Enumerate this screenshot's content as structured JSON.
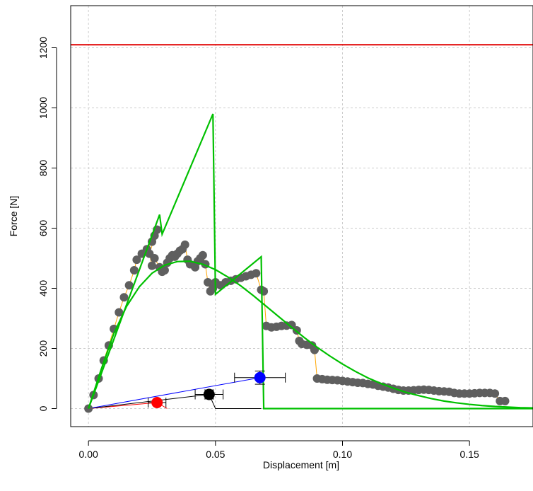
{
  "chart_data": {
    "type": "scatter",
    "title": "",
    "xlabel": "Displacement [m]",
    "ylabel": "Force [N]",
    "xlim": [
      -0.007,
      0.175
    ],
    "ylim": [
      -60,
      1340
    ],
    "xticks": [
      0.0,
      0.05,
      0.1,
      0.15
    ],
    "xtick_labels": [
      "0.00",
      "0.05",
      "0.10",
      "0.15"
    ],
    "yticks": [
      0,
      200,
      400,
      600,
      800,
      1000,
      1200
    ],
    "ytick_labels": [
      "0",
      "200",
      "400",
      "600",
      "800",
      "1000",
      "1200"
    ],
    "grid": true,
    "legend": "none",
    "colors": {
      "measured": "#5f5f5f",
      "model": "#00c000",
      "limit": "#e00000",
      "connector": "#ffa500",
      "red_point": "#ff0000",
      "black_point": "#000000",
      "blue_point": "#0000ff",
      "grid": "#cccccc"
    },
    "hline": 1210,
    "measured_points": [
      [
        0.0,
        0
      ],
      [
        0.002,
        45
      ],
      [
        0.004,
        100
      ],
      [
        0.006,
        160
      ],
      [
        0.008,
        210
      ],
      [
        0.01,
        265
      ],
      [
        0.012,
        320
      ],
      [
        0.014,
        370
      ],
      [
        0.016,
        410
      ],
      [
        0.018,
        460
      ],
      [
        0.019,
        495
      ],
      [
        0.021,
        515
      ],
      [
        0.023,
        530
      ],
      [
        0.025,
        555
      ],
      [
        0.026,
        575
      ],
      [
        0.027,
        595
      ],
      [
        0.024,
        515
      ],
      [
        0.025,
        475
      ],
      [
        0.026,
        500
      ],
      [
        0.028,
        470
      ],
      [
        0.029,
        455
      ],
      [
        0.03,
        460
      ],
      [
        0.031,
        485
      ],
      [
        0.032,
        500
      ],
      [
        0.033,
        510
      ],
      [
        0.034,
        505
      ],
      [
        0.035,
        515
      ],
      [
        0.036,
        525
      ],
      [
        0.037,
        530
      ],
      [
        0.038,
        545
      ],
      [
        0.039,
        495
      ],
      [
        0.04,
        480
      ],
      [
        0.042,
        470
      ],
      [
        0.043,
        490
      ],
      [
        0.044,
        500
      ],
      [
        0.045,
        510
      ],
      [
        0.046,
        480
      ],
      [
        0.047,
        420
      ],
      [
        0.048,
        390
      ],
      [
        0.049,
        400
      ],
      [
        0.05,
        420
      ],
      [
        0.052,
        410
      ],
      [
        0.054,
        420
      ],
      [
        0.056,
        425
      ],
      [
        0.058,
        430
      ],
      [
        0.06,
        435
      ],
      [
        0.062,
        440
      ],
      [
        0.064,
        445
      ],
      [
        0.066,
        450
      ],
      [
        0.068,
        395
      ],
      [
        0.069,
        390
      ],
      [
        0.07,
        275
      ],
      [
        0.072,
        270
      ],
      [
        0.074,
        272
      ],
      [
        0.076,
        275
      ],
      [
        0.078,
        276
      ],
      [
        0.08,
        278
      ],
      [
        0.082,
        260
      ],
      [
        0.083,
        225
      ],
      [
        0.084,
        215
      ],
      [
        0.086,
        212
      ],
      [
        0.088,
        210
      ],
      [
        0.089,
        195
      ],
      [
        0.09,
        100
      ],
      [
        0.092,
        98
      ],
      [
        0.094,
        96
      ],
      [
        0.096,
        95
      ],
      [
        0.098,
        94
      ],
      [
        0.1,
        92
      ],
      [
        0.102,
        90
      ],
      [
        0.104,
        88
      ],
      [
        0.106,
        86
      ],
      [
        0.108,
        85
      ],
      [
        0.11,
        82
      ],
      [
        0.112,
        80
      ],
      [
        0.114,
        76
      ],
      [
        0.116,
        73
      ],
      [
        0.118,
        70
      ],
      [
        0.12,
        66
      ],
      [
        0.122,
        62
      ],
      [
        0.124,
        60
      ],
      [
        0.126,
        60
      ],
      [
        0.128,
        61
      ],
      [
        0.13,
        62
      ],
      [
        0.132,
        63
      ],
      [
        0.134,
        62
      ],
      [
        0.136,
        60
      ],
      [
        0.138,
        58
      ],
      [
        0.14,
        57
      ],
      [
        0.142,
        56
      ],
      [
        0.144,
        52
      ],
      [
        0.146,
        50
      ],
      [
        0.148,
        50
      ],
      [
        0.15,
        50
      ],
      [
        0.152,
        51
      ],
      [
        0.154,
        52
      ],
      [
        0.156,
        52
      ],
      [
        0.158,
        52
      ],
      [
        0.16,
        50
      ],
      [
        0.162,
        25
      ],
      [
        0.164,
        25
      ]
    ],
    "model_sawtooth": [
      [
        0.0,
        0
      ],
      [
        0.028,
        645
      ],
      [
        0.029,
        580
      ],
      [
        0.049,
        980
      ],
      [
        0.05,
        380
      ],
      [
        0.068,
        505
      ],
      [
        0.069,
        0
      ],
      [
        0.175,
        0
      ]
    ],
    "model_curve": [
      [
        0.0,
        0
      ],
      [
        0.005,
        130
      ],
      [
        0.01,
        250
      ],
      [
        0.015,
        340
      ],
      [
        0.02,
        405
      ],
      [
        0.025,
        450
      ],
      [
        0.03,
        477
      ],
      [
        0.035,
        489
      ],
      [
        0.04,
        490
      ],
      [
        0.045,
        480
      ],
      [
        0.05,
        462
      ],
      [
        0.055,
        437
      ],
      [
        0.06,
        408
      ],
      [
        0.065,
        375
      ],
      [
        0.07,
        340
      ],
      [
        0.075,
        305
      ],
      [
        0.08,
        270
      ],
      [
        0.085,
        236
      ],
      [
        0.09,
        204
      ],
      [
        0.095,
        175
      ],
      [
        0.1,
        148
      ],
      [
        0.105,
        124
      ],
      [
        0.11,
        102
      ],
      [
        0.115,
        84
      ],
      [
        0.12,
        68
      ],
      [
        0.125,
        54
      ],
      [
        0.13,
        43
      ],
      [
        0.135,
        33
      ],
      [
        0.14,
        25
      ],
      [
        0.145,
        19
      ],
      [
        0.15,
        14
      ],
      [
        0.155,
        10
      ],
      [
        0.16,
        7
      ],
      [
        0.165,
        5
      ],
      [
        0.17,
        3
      ],
      [
        0.175,
        2
      ]
    ],
    "model_curve_color_note": "",
    "markers": [
      {
        "name": "red",
        "x": 0.027,
        "y": 20,
        "xerr": 0.0035,
        "yerr": 0,
        "color": "#ff0000"
      },
      {
        "name": "black",
        "x": 0.0475,
        "y": 47,
        "xerr": 0.0055,
        "yerr": 15,
        "color": "#000000"
      },
      {
        "name": "blue",
        "x": 0.0675,
        "y": 103,
        "xerr": 0.01,
        "yerr": 22,
        "color": "#0000ff"
      }
    ],
    "marker_lines": [
      {
        "color": "#ff0000",
        "points": [
          [
            0.0,
            0
          ],
          [
            0.027,
            20
          ],
          [
            0.031,
            0
          ]
        ]
      },
      {
        "color": "#000000",
        "points": [
          [
            0.0,
            0
          ],
          [
            0.0475,
            47
          ],
          [
            0.05,
            0
          ],
          [
            0.068,
            0
          ]
        ]
      },
      {
        "color": "#0000ff",
        "points": [
          [
            0.0,
            0
          ],
          [
            0.0675,
            103
          ]
        ]
      }
    ]
  }
}
